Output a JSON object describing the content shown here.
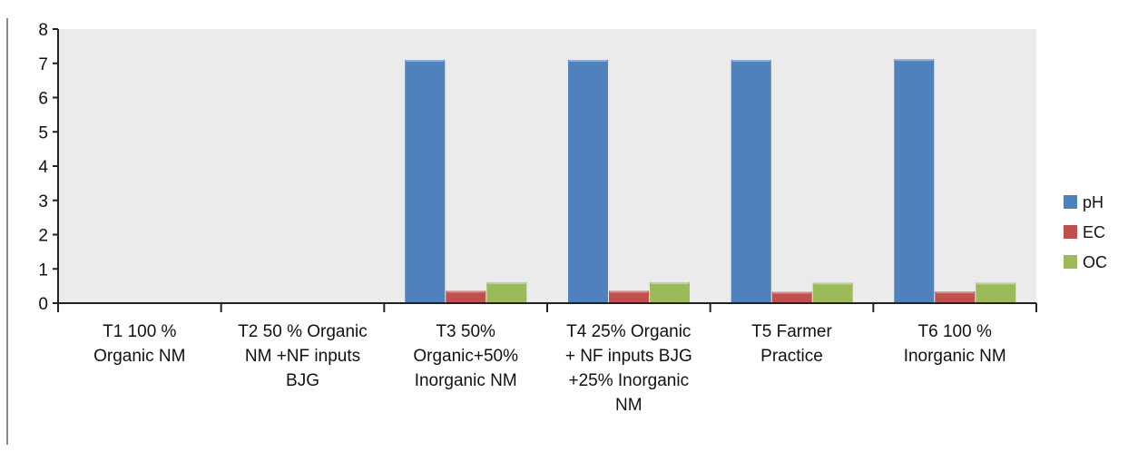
{
  "chart_data": {
    "type": "bar",
    "categories": [
      [
        "T1 100 %",
        "Organic NM"
      ],
      [
        "T2 50 % Organic",
        "NM +NF inputs",
        "BJG"
      ],
      [
        "T3 50%",
        "Organic+50%",
        "Inorganic NM"
      ],
      [
        "T4 25% Organic",
        "+ NF inputs BJG",
        "+25% Inorganic",
        "NM"
      ],
      [
        "T5 Farmer",
        "Practice"
      ],
      [
        "T6 100 %",
        "Inorganic NM"
      ]
    ],
    "series": [
      {
        "name": "pH",
        "color": "#4f81bd",
        "values": [
          0.0,
          0.0,
          7.1,
          7.1,
          7.1,
          7.12
        ]
      },
      {
        "name": "EC",
        "color": "#c0504d",
        "values": [
          0.02,
          0.0,
          0.36,
          0.36,
          0.33,
          0.34
        ]
      },
      {
        "name": "OC",
        "color": "#9bbb59",
        "values": [
          0.02,
          0.0,
          0.61,
          0.61,
          0.6,
          0.6
        ]
      }
    ],
    "ylim": [
      0,
      8
    ],
    "yticks": [
      "0",
      "1",
      "2",
      "3",
      "4",
      "5",
      "6",
      "7",
      "8"
    ],
    "grid": false,
    "legend_position": "right",
    "plot_background": "#ebebeb"
  }
}
